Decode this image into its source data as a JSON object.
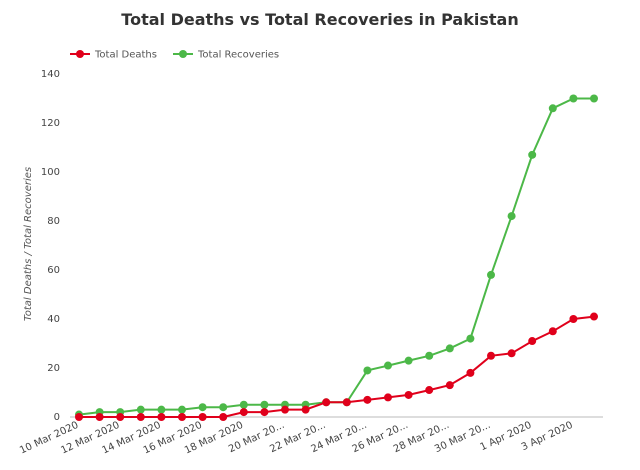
{
  "chart_data": {
    "type": "line",
    "title": "Total Deaths vs Total Recoveries in Pakistan",
    "xlabel": "",
    "ylabel": "Total Deaths / Total Recoveries",
    "ylim": [
      0,
      140
    ],
    "yticks": [
      0,
      20,
      40,
      60,
      80,
      100,
      120,
      140
    ],
    "grid": false,
    "legend_position": "top-left",
    "x": [
      "10 Mar 2020",
      "11 Mar 2020",
      "12 Mar 2020",
      "13 Mar 2020",
      "14 Mar 2020",
      "15 Mar 2020",
      "16 Mar 2020",
      "17 Mar 2020",
      "18 Mar 2020",
      "19 Mar 2020",
      "20 Mar 2020",
      "21 Mar 2020",
      "22 Mar 2020",
      "23 Mar 2020",
      "24 Mar 2020",
      "25 Mar 2020",
      "26 Mar 2020",
      "27 Mar 2020",
      "28 Mar 2020",
      "29 Mar 2020",
      "30 Mar 2020",
      "31 Mar 2020",
      "1 Apr 2020",
      "2 Apr 2020",
      "3 Apr 2020",
      "4 Apr 2020"
    ],
    "x_tick_labels": [
      "10 Mar 2020",
      "12 Mar 2020",
      "14 Mar 2020",
      "16 Mar 2020",
      "18 Mar 2020",
      "20 Mar 20...",
      "22 Mar 20...",
      "24 Mar 20...",
      "26 Mar 20...",
      "28 Mar 20...",
      "30 Mar 20...",
      "1 Apr 2020",
      "3 Apr 2020"
    ],
    "series": [
      {
        "name": "Total Deaths",
        "color": "#e0001b",
        "values": [
          0,
          0,
          0,
          0,
          0,
          0,
          0,
          0,
          2,
          2,
          3,
          3,
          6,
          6,
          7,
          8,
          9,
          11,
          13,
          18,
          25,
          26,
          31,
          35,
          40,
          41
        ]
      },
      {
        "name": "Total Recoveries",
        "color": "#4cb848",
        "values": [
          1,
          2,
          2,
          3,
          3,
          3,
          4,
          4,
          5,
          5,
          5,
          5,
          6,
          6,
          19,
          21,
          23,
          25,
          28,
          32,
          58,
          82,
          107,
          126,
          130,
          130
        ]
      }
    ]
  }
}
